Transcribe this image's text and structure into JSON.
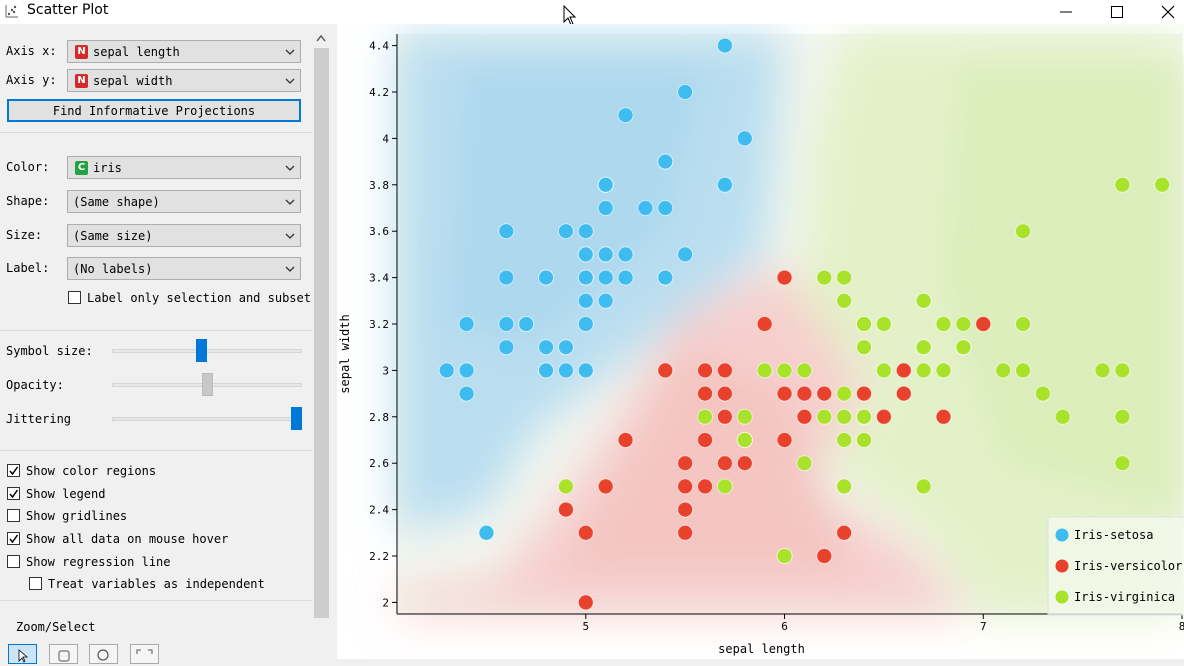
{
  "window": {
    "title": "Scatter Plot"
  },
  "axes_controls": {
    "axis_x_label": "Axis x:",
    "axis_x_value": "sepal length",
    "axis_y_label": "Axis y:",
    "axis_y_value": "sepal width",
    "find_button": "Find Informative Projections"
  },
  "attributes": {
    "color_label": "Color:",
    "color_value": "iris",
    "shape_label": "Shape:",
    "shape_value": "(Same shape)",
    "size_label": "Size:",
    "size_value": "(Same size)",
    "label_label": "Label:",
    "label_value": "(No labels)",
    "label_only_selection": "Label only selection and subset",
    "badge_numeric": "N",
    "badge_categorical": "C"
  },
  "sliders": {
    "symbol_size_label": "Symbol size:",
    "symbol_size": 0.47,
    "opacity_label": "Opacity:",
    "opacity": 0.5,
    "jittering_label": "Jittering",
    "jittering": 1.0
  },
  "options": [
    {
      "label": "Show color regions",
      "checked": true
    },
    {
      "label": "Show legend",
      "checked": true
    },
    {
      "label": "Show gridlines",
      "checked": false
    },
    {
      "label": "Show all data on mouse hover",
      "checked": true
    },
    {
      "label": "Show regression line",
      "checked": false
    },
    {
      "label": "Treat variables as independent",
      "checked": false
    }
  ],
  "zoom_select_label": "Zoom/Select",
  "colors": {
    "setosa": "#3ebcf0",
    "versicolor": "#e8412c",
    "virginica": "#a8e22a",
    "accent": "#0078d7"
  },
  "chart_data": {
    "type": "scatter",
    "xlabel": "sepal length",
    "ylabel": "sepal width",
    "xlim": [
      4.05,
      8.0
    ],
    "ylim": [
      1.95,
      4.45
    ],
    "xticks": [
      5,
      6,
      7,
      8
    ],
    "yticks": [
      "2",
      "2.2",
      "2.4",
      "2.6",
      "2.8",
      "3",
      "3.2",
      "3.4",
      "3.6",
      "3.8",
      "4",
      "4.2",
      "4.4"
    ],
    "legend_position": "bottom-right",
    "series": [
      {
        "name": "Iris-setosa",
        "color": "#3ebcf0",
        "points": [
          [
            5.1,
            3.5
          ],
          [
            4.9,
            3.0
          ],
          [
            4.7,
            3.2
          ],
          [
            4.6,
            3.1
          ],
          [
            5.0,
            3.6
          ],
          [
            5.4,
            3.9
          ],
          [
            4.6,
            3.4
          ],
          [
            5.0,
            3.4
          ],
          [
            4.4,
            2.9
          ],
          [
            4.9,
            3.1
          ],
          [
            5.4,
            3.7
          ],
          [
            4.8,
            3.4
          ],
          [
            4.8,
            3.0
          ],
          [
            4.3,
            3.0
          ],
          [
            5.8,
            4.0
          ],
          [
            5.7,
            4.4
          ],
          [
            5.4,
            3.9
          ],
          [
            5.1,
            3.5
          ],
          [
            5.7,
            3.8
          ],
          [
            5.1,
            3.8
          ],
          [
            5.4,
            3.4
          ],
          [
            5.1,
            3.7
          ],
          [
            4.6,
            3.6
          ],
          [
            5.1,
            3.3
          ],
          [
            4.8,
            3.4
          ],
          [
            5.0,
            3.0
          ],
          [
            5.0,
            3.4
          ],
          [
            5.2,
            3.5
          ],
          [
            5.2,
            3.4
          ],
          [
            4.7,
            3.2
          ],
          [
            4.8,
            3.1
          ],
          [
            5.4,
            3.4
          ],
          [
            5.2,
            4.1
          ],
          [
            5.5,
            4.2
          ],
          [
            4.9,
            3.1
          ],
          [
            5.0,
            3.2
          ],
          [
            5.5,
            3.5
          ],
          [
            4.9,
            3.6
          ],
          [
            4.4,
            3.0
          ],
          [
            5.1,
            3.4
          ],
          [
            5.0,
            3.5
          ],
          [
            4.5,
            2.3
          ],
          [
            4.4,
            3.2
          ],
          [
            5.0,
            3.5
          ],
          [
            5.1,
            3.8
          ],
          [
            4.8,
            3.0
          ],
          [
            5.1,
            3.8
          ],
          [
            4.6,
            3.2
          ],
          [
            5.3,
            3.7
          ],
          [
            5.0,
            3.3
          ]
        ]
      },
      {
        "name": "Iris-versicolor",
        "color": "#e8412c",
        "points": [
          [
            7.0,
            3.2
          ],
          [
            6.4,
            3.2
          ],
          [
            6.9,
            3.1
          ],
          [
            5.5,
            2.3
          ],
          [
            6.5,
            2.8
          ],
          [
            5.7,
            2.8
          ],
          [
            6.3,
            3.3
          ],
          [
            4.9,
            2.4
          ],
          [
            6.6,
            2.9
          ],
          [
            5.2,
            2.7
          ],
          [
            5.0,
            2.0
          ],
          [
            5.9,
            3.0
          ],
          [
            6.0,
            2.2
          ],
          [
            6.1,
            2.9
          ],
          [
            5.6,
            2.9
          ],
          [
            6.7,
            3.1
          ],
          [
            5.6,
            3.0
          ],
          [
            5.8,
            2.7
          ],
          [
            6.2,
            2.2
          ],
          [
            5.6,
            2.5
          ],
          [
            5.9,
            3.2
          ],
          [
            6.1,
            2.8
          ],
          [
            6.3,
            2.5
          ],
          [
            6.1,
            2.8
          ],
          [
            6.4,
            2.9
          ],
          [
            6.6,
            3.0
          ],
          [
            6.8,
            2.8
          ],
          [
            6.7,
            3.0
          ],
          [
            6.0,
            2.9
          ],
          [
            5.7,
            2.6
          ],
          [
            5.5,
            2.4
          ],
          [
            5.5,
            2.4
          ],
          [
            5.8,
            2.7
          ],
          [
            6.0,
            2.7
          ],
          [
            5.4,
            3.0
          ],
          [
            6.0,
            3.4
          ],
          [
            6.7,
            3.1
          ],
          [
            6.3,
            2.3
          ],
          [
            5.6,
            3.0
          ],
          [
            5.5,
            2.5
          ],
          [
            5.5,
            2.6
          ],
          [
            6.1,
            3.0
          ],
          [
            5.8,
            2.6
          ],
          [
            5.0,
            2.3
          ],
          [
            5.6,
            2.7
          ],
          [
            5.7,
            3.0
          ],
          [
            5.7,
            2.9
          ],
          [
            6.2,
            2.9
          ],
          [
            5.1,
            2.5
          ],
          [
            5.7,
            2.8
          ]
        ]
      },
      {
        "name": "Iris-virginica",
        "color": "#a8e22a",
        "points": [
          [
            6.3,
            3.3
          ],
          [
            5.8,
            2.7
          ],
          [
            7.1,
            3.0
          ],
          [
            6.3,
            2.9
          ],
          [
            6.5,
            3.0
          ],
          [
            7.6,
            3.0
          ],
          [
            4.9,
            2.5
          ],
          [
            7.3,
            2.9
          ],
          [
            6.7,
            2.5
          ],
          [
            7.2,
            3.6
          ],
          [
            6.5,
            3.2
          ],
          [
            6.4,
            2.7
          ],
          [
            6.8,
            3.0
          ],
          [
            5.7,
            2.5
          ],
          [
            5.8,
            2.8
          ],
          [
            6.4,
            3.2
          ],
          [
            6.5,
            3.0
          ],
          [
            7.7,
            3.8
          ],
          [
            7.7,
            2.6
          ],
          [
            6.0,
            2.2
          ],
          [
            6.9,
            3.2
          ],
          [
            5.6,
            2.8
          ],
          [
            7.7,
            2.8
          ],
          [
            6.3,
            2.7
          ],
          [
            6.7,
            3.3
          ],
          [
            7.2,
            3.2
          ],
          [
            6.2,
            2.8
          ],
          [
            6.1,
            3.0
          ],
          [
            6.4,
            2.8
          ],
          [
            7.2,
            3.0
          ],
          [
            7.4,
            2.8
          ],
          [
            7.9,
            3.8
          ],
          [
            6.4,
            2.8
          ],
          [
            6.3,
            2.8
          ],
          [
            6.1,
            2.6
          ],
          [
            7.7,
            3.0
          ],
          [
            6.3,
            3.4
          ],
          [
            6.4,
            3.1
          ],
          [
            6.0,
            3.0
          ],
          [
            6.9,
            3.1
          ],
          [
            6.7,
            3.1
          ],
          [
            6.9,
            3.1
          ],
          [
            5.8,
            2.7
          ],
          [
            6.8,
            3.2
          ],
          [
            6.7,
            3.3
          ],
          [
            6.7,
            3.0
          ],
          [
            6.3,
            2.5
          ],
          [
            6.5,
            3.0
          ],
          [
            6.2,
            3.4
          ],
          [
            5.9,
            3.0
          ]
        ]
      }
    ]
  }
}
